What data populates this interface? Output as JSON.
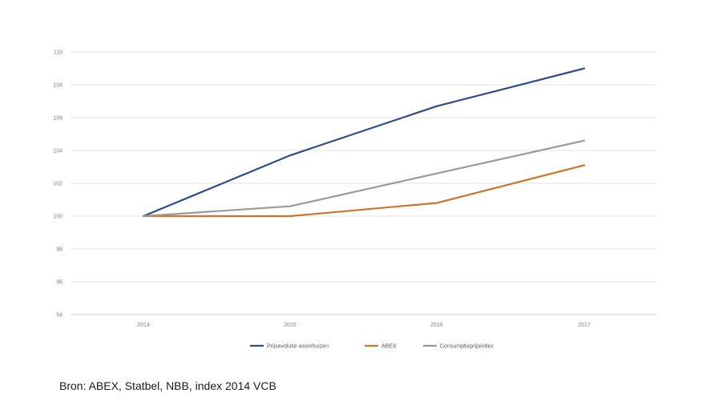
{
  "chart_data": {
    "type": "line",
    "categories": [
      "2014",
      "2015",
      "2016",
      "2017"
    ],
    "series": [
      {
        "name": "Prijsevolutie woonhuizen",
        "values": [
          100,
          103.7,
          106.7,
          109.0
        ],
        "color": "#2e4d8a"
      },
      {
        "name": "ABEX",
        "values": [
          100,
          100.0,
          100.8,
          103.1
        ],
        "color": "#d0712c"
      },
      {
        "name": "Consumptieprijsindex",
        "values": [
          100,
          100.6,
          102.6,
          104.6
        ],
        "color": "#9a9a9a"
      }
    ],
    "yticks": [
      94,
      96,
      98,
      100,
      102,
      104,
      106,
      108,
      110
    ],
    "ylim": [
      94,
      110
    ],
    "grid": "horizontal",
    "legend_position": "bottom"
  },
  "source_note": "Bron: ABEX, Statbel, NBB, index 2014 VCB"
}
